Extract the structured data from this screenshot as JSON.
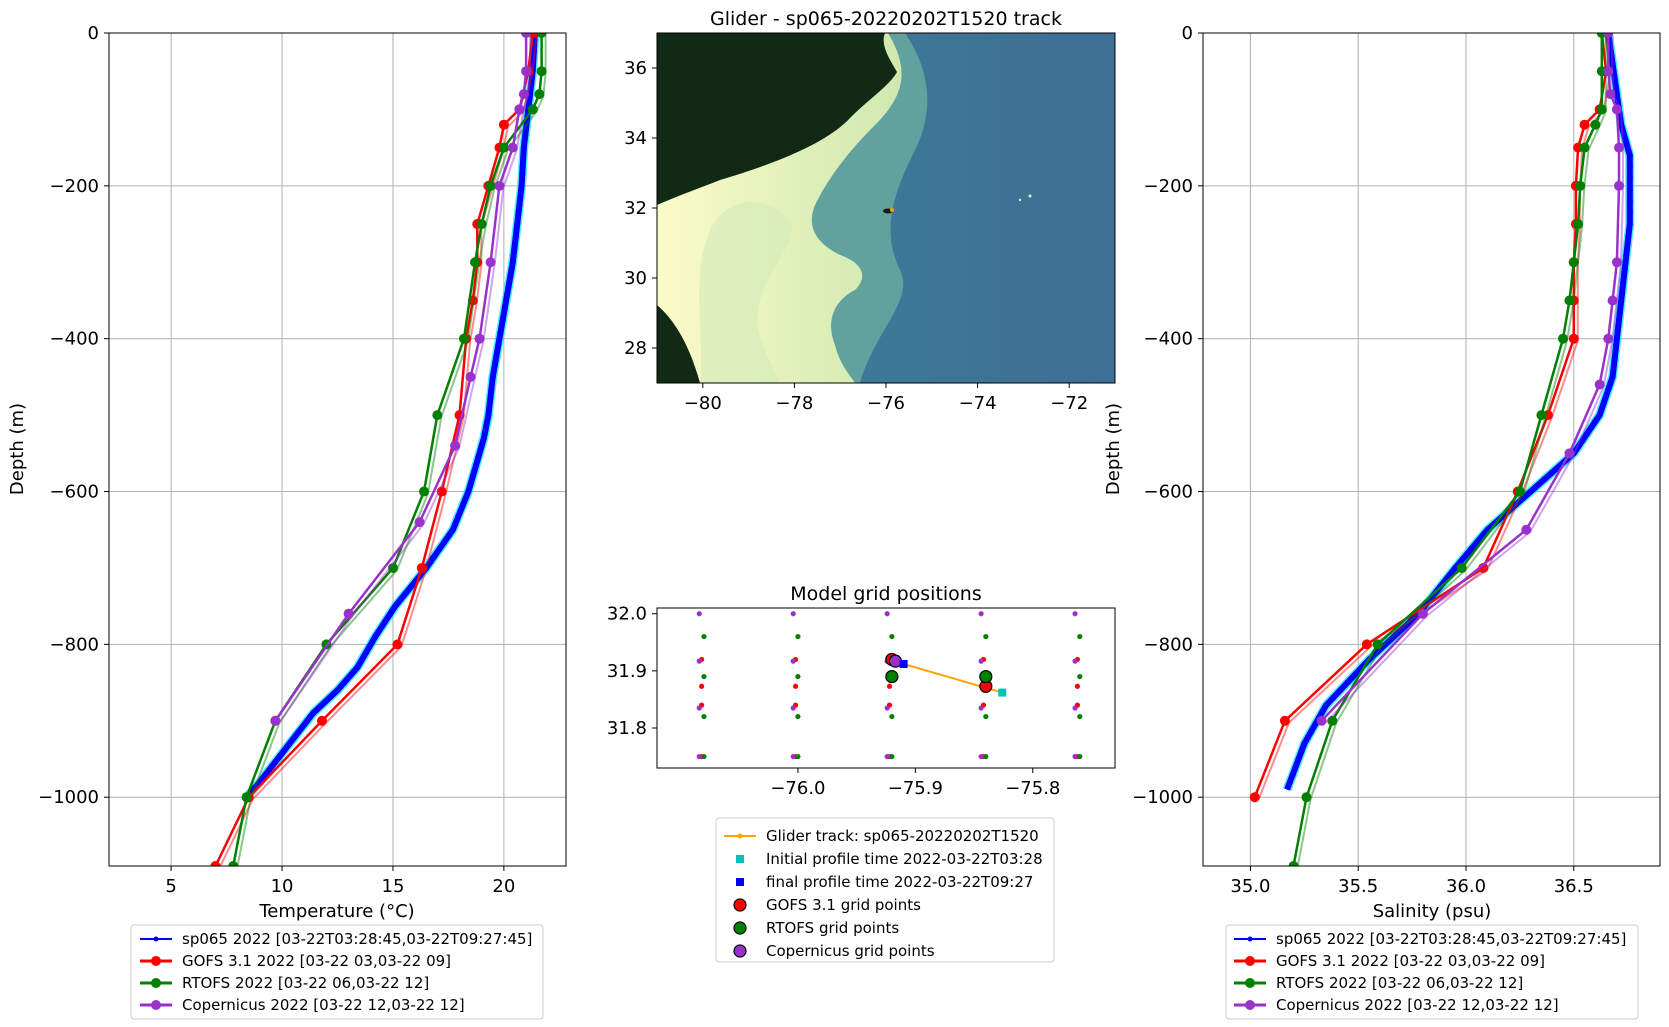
{
  "colors": {
    "glider": "#0000ff",
    "glider_light": "#00e5ff",
    "gofs": "#ff0000",
    "rtofs": "#008000",
    "copernicus": "#9932cc",
    "track": "#ffa500",
    "initial": "#00c0c0",
    "final": "#0000ff",
    "land": "#102a15",
    "shelf": "#f8f8c8",
    "slope": "#4a9aa0",
    "deep": "#3d6e94"
  },
  "chart_data": [
    {
      "type": "line",
      "panel": "temperature",
      "xlabel": "Temperature (°C)",
      "ylabel": "Depth (m)",
      "xlim": [
        2.2,
        22.8
      ],
      "ylim": [
        -1090,
        0
      ],
      "xticks": [
        5,
        10,
        15,
        20
      ],
      "yticks": [
        0,
        -200,
        -400,
        -600,
        -800,
        -1000
      ],
      "grid": true,
      "legend_location": "below",
      "series": [
        {
          "name": "sp065 2022 [03-22T03:28:45,03-22T09:27:45]",
          "key": "glider",
          "x": [
            21.4,
            21.3,
            21.1,
            20.9,
            20.8,
            20.6,
            20.4,
            20.1,
            19.8,
            19.5,
            19.3,
            19.1,
            18.8,
            18.4,
            17.7,
            16.5,
            15.1,
            14.2,
            13.4,
            12.5,
            11.4,
            10.6,
            9.8,
            9.0,
            8.4
          ],
          "y": [
            0,
            -50,
            -100,
            -150,
            -200,
            -250,
            -300,
            -350,
            -400,
            -450,
            -500,
            -530,
            -560,
            -600,
            -650,
            -700,
            -750,
            -790,
            -830,
            -860,
            -890,
            -920,
            -950,
            -980,
            -1000
          ]
        },
        {
          "name": "GOFS 3.1 2022 [03-22 03,03-22 09]",
          "key": "gofs",
          "x": [
            21.3,
            21.1,
            20.7,
            20.0,
            19.8,
            19.3,
            18.8,
            18.8,
            18.6,
            18.3,
            18.0,
            17.2,
            16.3,
            15.2,
            11.8,
            8.5,
            7.0
          ],
          "y": [
            0,
            -50,
            -100,
            -120,
            -150,
            -200,
            -250,
            -300,
            -350,
            -400,
            -500,
            -600,
            -700,
            -800,
            -900,
            -1000,
            -1090
          ]
        },
        {
          "name": "RTOFS 2022 [03-22 06,03-22 12]",
          "key": "rtofs",
          "x": [
            21.7,
            21.7,
            21.6,
            21.3,
            20.0,
            19.4,
            19.0,
            18.7,
            18.2,
            17.0,
            16.4,
            15.0,
            12.0,
            9.7,
            8.4,
            7.8
          ],
          "y": [
            0,
            -50,
            -80,
            -100,
            -150,
            -200,
            -250,
            -300,
            -400,
            -500,
            -600,
            -700,
            -800,
            -900,
            -1000,
            -1090
          ]
        },
        {
          "name": "Copernicus 2022 [03-22 12,03-22 12]",
          "key": "copernicus",
          "x": [
            21.0,
            21.0,
            20.9,
            20.7,
            20.4,
            19.8,
            19.4,
            18.9,
            18.5,
            17.8,
            16.2,
            13.0,
            9.7
          ],
          "y": [
            0,
            -50,
            -80,
            -100,
            -150,
            -200,
            -300,
            -400,
            -450,
            -540,
            -640,
            -760,
            -900
          ]
        }
      ]
    },
    {
      "type": "line",
      "panel": "salinity",
      "xlabel": "Salinity (psu)",
      "ylabel": "Depth (m)",
      "xlim": [
        34.78,
        36.9
      ],
      "ylim": [
        -1090,
        0
      ],
      "xticks": [
        35.0,
        35.5,
        36.0,
        36.5
      ],
      "ytick_labels": [
        "0",
        "−200",
        "−400",
        "−600",
        "−800",
        "−1000"
      ],
      "yticks": [
        0,
        -200,
        -400,
        -600,
        -800,
        -1000
      ],
      "grid": true,
      "legend_location": "below",
      "series": [
        {
          "name": "sp065 2022 [03-22T03:28:45,03-22T09:27:45]",
          "key": "glider",
          "x": [
            36.66,
            36.69,
            36.72,
            36.76,
            36.76,
            36.74,
            36.72,
            36.7,
            36.68,
            36.62,
            36.5,
            36.3,
            36.1,
            35.95,
            35.78,
            35.55,
            35.35,
            35.25,
            35.17
          ],
          "y": [
            0,
            -60,
            -120,
            -160,
            -250,
            -300,
            -350,
            -400,
            -450,
            -500,
            -550,
            -600,
            -650,
            -700,
            -760,
            -820,
            -880,
            -930,
            -990
          ]
        },
        {
          "name": "GOFS 3.1 2022 [03-22 03,03-22 09]",
          "key": "gofs",
          "x": [
            36.63,
            36.65,
            36.62,
            36.55,
            36.52,
            36.51,
            36.51,
            36.5,
            36.5,
            36.5,
            36.38,
            36.24,
            36.08,
            35.54,
            35.16,
            35.02
          ],
          "y": [
            0,
            -50,
            -100,
            -120,
            -150,
            -200,
            -250,
            -300,
            -350,
            -400,
            -500,
            -600,
            -700,
            -800,
            -900,
            -1000
          ]
        },
        {
          "name": "RTOFS 2022 [03-22 06,03-22 12]",
          "key": "rtofs",
          "x": [
            36.63,
            36.63,
            36.63,
            36.6,
            36.55,
            36.53,
            36.52,
            36.5,
            36.48,
            36.45,
            36.35,
            36.25,
            35.98,
            35.59,
            35.38,
            35.26,
            35.2
          ],
          "y": [
            0,
            -50,
            -100,
            -120,
            -150,
            -200,
            -250,
            -300,
            -350,
            -400,
            -500,
            -600,
            -700,
            -800,
            -900,
            -1000,
            -1090
          ]
        },
        {
          "name": "Copernicus 2022 [03-22 12,03-22 12]",
          "key": "copernicus",
          "x": [
            36.66,
            36.66,
            36.67,
            36.7,
            36.71,
            36.71,
            36.7,
            36.68,
            36.66,
            36.62,
            36.48,
            36.28,
            35.8,
            35.33
          ],
          "y": [
            0,
            -50,
            -80,
            -100,
            -150,
            -200,
            -300,
            -350,
            -400,
            -460,
            -550,
            -650,
            -760,
            -900
          ]
        }
      ]
    },
    {
      "type": "map",
      "panel": "track",
      "title": "Glider - sp065-20220202T1520 track",
      "xlim": [
        -81,
        -71
      ],
      "ylim": [
        27,
        37
      ],
      "xticks": [
        -80,
        -78,
        -76,
        -74,
        -72
      ],
      "yticks": [
        28,
        30,
        32,
        34,
        36
      ],
      "glider_position": {
        "lon": -75.85,
        "lat": 31.9
      }
    },
    {
      "type": "scatter",
      "panel": "grid",
      "title": "Model grid positions",
      "xlim": [
        -76.12,
        -75.73
      ],
      "ylim": [
        31.73,
        32.01
      ],
      "xticks": [
        -76.0,
        -75.9,
        -75.8
      ],
      "yticks": [
        31.8,
        31.9,
        32.0
      ],
      "grid_columns_lon": [
        -76.08,
        -76.0,
        -75.92,
        -75.84,
        -75.76
      ],
      "gofs_lats": [
        31.92,
        31.873,
        31.84,
        31.75
      ],
      "rtofs_lats": [
        31.96,
        31.89,
        31.82,
        31.75
      ],
      "copernicus_lats": [
        32.0,
        31.917,
        31.835,
        31.75
      ],
      "track": {
        "lon": [
          -75.91,
          -75.826
        ],
        "lat": [
          31.912,
          31.862
        ]
      },
      "initial": {
        "lon": -75.826,
        "lat": 31.862
      },
      "final": {
        "lon": -75.91,
        "lat": 31.912
      },
      "selected_gofs": [
        {
          "lon": -75.92,
          "lat": 31.92
        },
        {
          "lon": -75.84,
          "lat": 31.873
        }
      ],
      "selected_rtofs": [
        {
          "lon": -75.92,
          "lat": 31.89
        },
        {
          "lon": -75.84,
          "lat": 31.89
        }
      ],
      "selected_copernicus": [
        {
          "lon": -75.917,
          "lat": 31.917
        }
      ],
      "legend": [
        "Glider track: sp065-20220202T1520",
        "Initial profile time 2022-03-22T03:28",
        "final profile time 2022-03-22T09:27",
        "GOFS 3.1 grid points",
        "RTOFS grid points",
        "Copernicus grid points"
      ]
    }
  ]
}
